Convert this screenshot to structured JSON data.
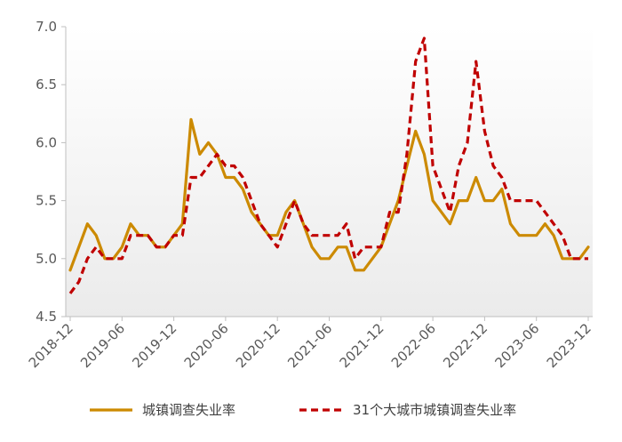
{
  "chart_data": {
    "type": "line",
    "title": "",
    "xlabel": "",
    "ylabel": "",
    "ylim": [
      4.5,
      7.0
    ],
    "y_ticks": [
      "4.5",
      "5.0",
      "5.5",
      "6.0",
      "6.5",
      "7.0"
    ],
    "x_tick_labels": [
      "2018-12",
      "2019-06",
      "2019-12",
      "2020-06",
      "2020-12",
      "2021-06",
      "2021-12",
      "2022-06",
      "2022-12",
      "2023-06",
      "2023-12"
    ],
    "grid": false,
    "legend_position": "bottom",
    "x": [
      "2018-12",
      "2019-01",
      "2019-02",
      "2019-03",
      "2019-04",
      "2019-05",
      "2019-06",
      "2019-07",
      "2019-08",
      "2019-09",
      "2019-10",
      "2019-11",
      "2019-12",
      "2020-01",
      "2020-02",
      "2020-03",
      "2020-04",
      "2020-05",
      "2020-06",
      "2020-07",
      "2020-08",
      "2020-09",
      "2020-10",
      "2020-11",
      "2020-12",
      "2021-01",
      "2021-02",
      "2021-03",
      "2021-04",
      "2021-05",
      "2021-06",
      "2021-07",
      "2021-08",
      "2021-09",
      "2021-10",
      "2021-11",
      "2021-12",
      "2022-01",
      "2022-02",
      "2022-03",
      "2022-04",
      "2022-05",
      "2022-06",
      "2022-07",
      "2022-08",
      "2022-09",
      "2022-10",
      "2022-11",
      "2022-12",
      "2023-01",
      "2023-02",
      "2023-03",
      "2023-04",
      "2023-05",
      "2023-06",
      "2023-07",
      "2023-08",
      "2023-09",
      "2023-10",
      "2023-11",
      "2023-12"
    ],
    "series": [
      {
        "name": "城镇调查失业率",
        "color": "#CC8A00",
        "dash": "solid",
        "values": [
          4.9,
          5.1,
          5.3,
          5.2,
          5.0,
          5.0,
          5.1,
          5.3,
          5.2,
          5.2,
          5.1,
          5.1,
          5.2,
          5.3,
          6.2,
          5.9,
          6.0,
          5.9,
          5.7,
          5.7,
          5.6,
          5.4,
          5.3,
          5.2,
          5.2,
          5.4,
          5.5,
          5.3,
          5.1,
          5.0,
          5.0,
          5.1,
          5.1,
          4.9,
          4.9,
          5.0,
          5.1,
          5.3,
          5.5,
          5.8,
          6.1,
          5.9,
          5.5,
          5.4,
          5.3,
          5.5,
          5.5,
          5.7,
          5.5,
          5.5,
          5.6,
          5.3,
          5.2,
          5.2,
          5.2,
          5.3,
          5.2,
          5.0,
          5.0,
          5.0,
          5.1
        ]
      },
      {
        "name": "31个大城市城镇调查失业率",
        "color": "#C00000",
        "dash": "dashed",
        "values": [
          4.7,
          4.8,
          5.0,
          5.1,
          5.0,
          5.0,
          5.0,
          5.2,
          5.2,
          5.2,
          5.1,
          5.1,
          5.2,
          5.2,
          5.7,
          5.7,
          5.8,
          5.9,
          5.8,
          5.8,
          5.7,
          5.5,
          5.3,
          5.2,
          5.1,
          5.3,
          5.5,
          5.3,
          5.2,
          5.2,
          5.2,
          5.2,
          5.3,
          5.0,
          5.1,
          5.1,
          5.1,
          5.4,
          5.4,
          5.9,
          6.7,
          6.9,
          5.8,
          5.6,
          5.4,
          5.8,
          6.0,
          6.7,
          6.1,
          5.8,
          5.7,
          5.5,
          5.5,
          5.5,
          5.5,
          5.4,
          5.3,
          5.2,
          5.0,
          5.0,
          5.0
        ]
      }
    ]
  }
}
